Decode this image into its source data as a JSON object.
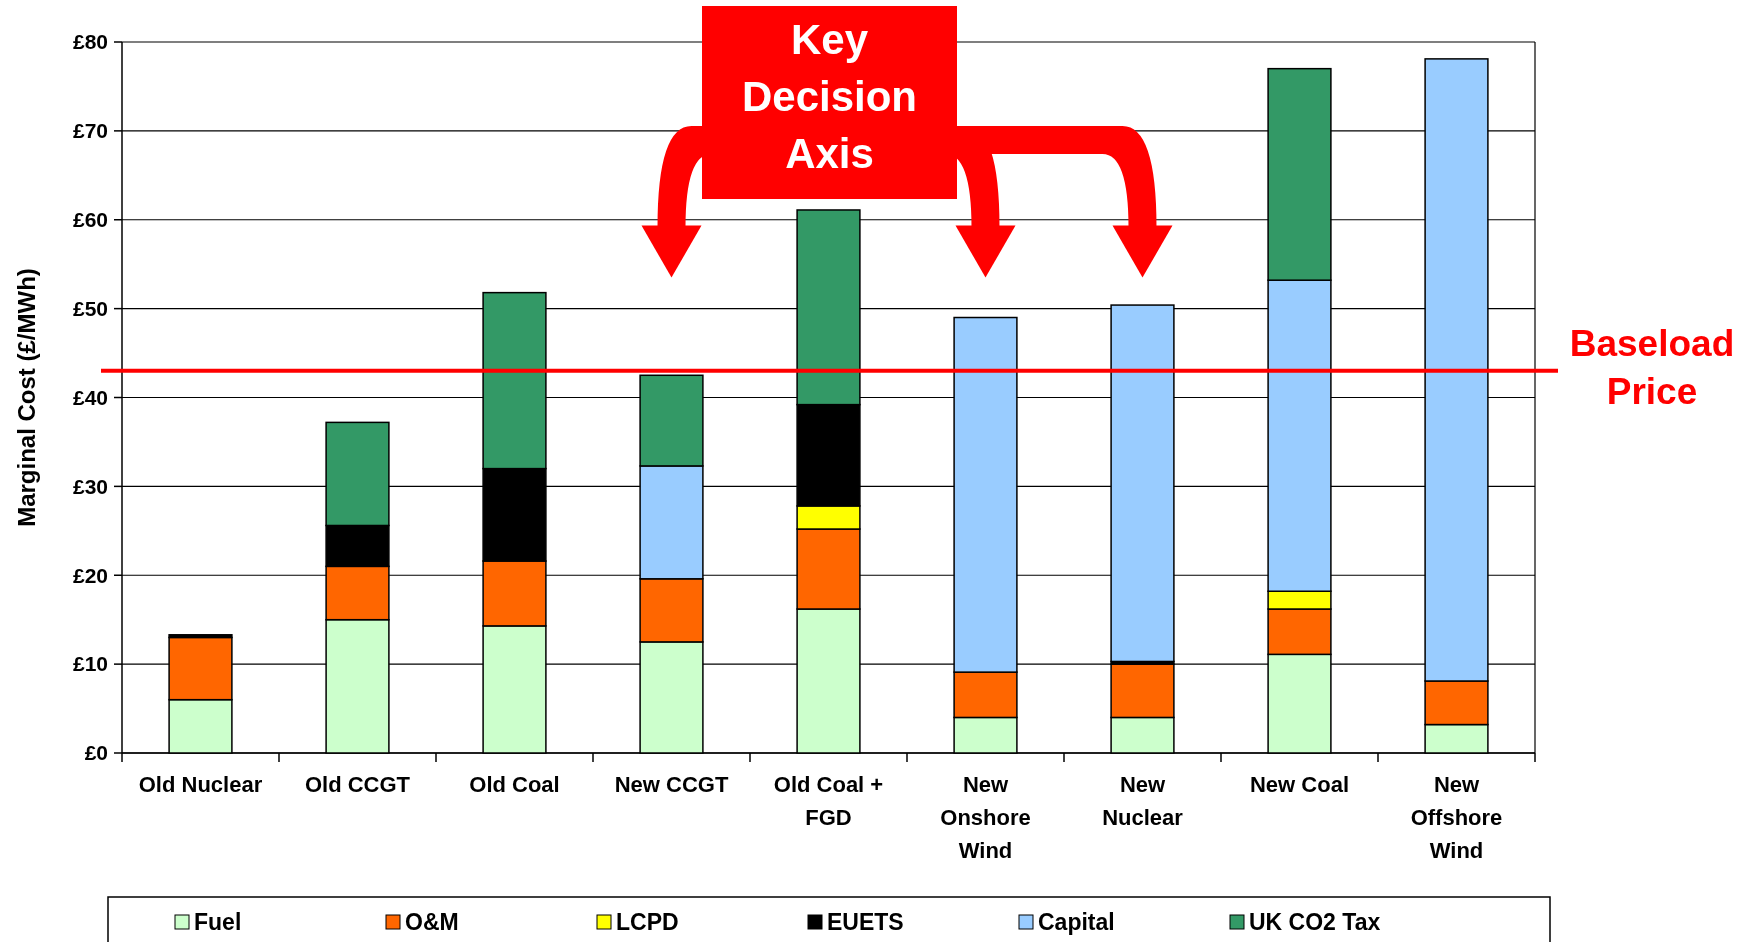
{
  "chart_data": {
    "type": "bar",
    "stacked": true,
    "ylabel": "Marginal Cost (£/MWh)",
    "categories": [
      "Old Nuclear",
      "Old CCGT",
      "Old Coal",
      "New CCGT",
      "Old Coal + FGD",
      "New Onshore Wind",
      "New Nuclear",
      "New Coal",
      "New Offshore Wind"
    ],
    "series": [
      {
        "name": "Fuel",
        "color": "#ccffcc",
        "values": [
          6,
          15,
          14.3,
          12.5,
          16.2,
          4,
          4,
          11.1,
          3.2
        ]
      },
      {
        "name": "O&M",
        "color": "#ff6600",
        "values": [
          7,
          6,
          7.3,
          7.1,
          9,
          5.1,
          6,
          5.1,
          4.9
        ]
      },
      {
        "name": "LCPD",
        "color": "#ffff00",
        "values": [
          0,
          0,
          0,
          0,
          2.6,
          0,
          0,
          2,
          0
        ]
      },
      {
        "name": "EUETS",
        "color": "#000000",
        "values": [
          0.3,
          4.6,
          10.4,
          0,
          11.4,
          0,
          0.3,
          0,
          0
        ]
      },
      {
        "name": "Capital",
        "color": "#99ccff",
        "values": [
          0,
          0,
          0,
          12.7,
          0,
          39.9,
          40.1,
          35,
          70
        ]
      },
      {
        "name": "UK CO2 Tax",
        "color": "#339966",
        "values": [
          0,
          11.6,
          19.8,
          10.2,
          21.9,
          0,
          0,
          23.8,
          0
        ]
      }
    ],
    "ylim": [
      0,
      80
    ],
    "yticks": [
      {
        "value": 0,
        "label": "£0"
      },
      {
        "value": 10,
        "label": "£10"
      },
      {
        "value": 20,
        "label": "£20"
      },
      {
        "value": 30,
        "label": "£30"
      },
      {
        "value": 40,
        "label": "£40"
      },
      {
        "value": 50,
        "label": "£50"
      },
      {
        "value": 60,
        "label": "£60"
      },
      {
        "value": 70,
        "label": "£70"
      },
      {
        "value": 80,
        "label": "£80"
      }
    ],
    "grid": "y",
    "legend": "bottom",
    "ref_lines": [
      {
        "axis": "y",
        "value": 43,
        "label": "Baseload Price",
        "color": "#ff0000"
      }
    ],
    "annotations": [
      "Key Decision Axis"
    ]
  }
}
